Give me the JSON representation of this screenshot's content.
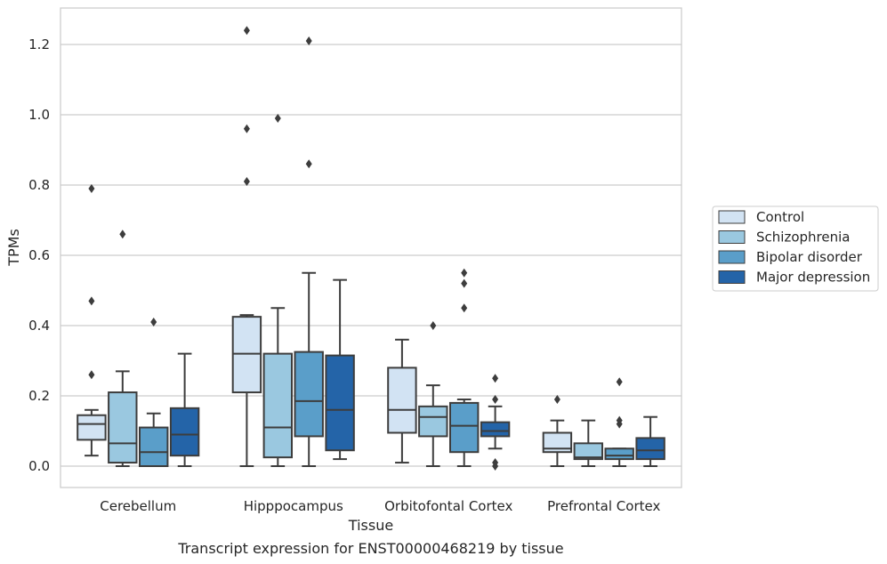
{
  "chart_data": {
    "type": "box",
    "title": "Transcript expression for ENST00000468219 by tissue",
    "xlabel": "Tissue",
    "ylabel": "TPMs",
    "ylim": [
      -0.06,
      1.3
    ],
    "yticks": [
      0.0,
      0.2,
      0.4,
      0.6,
      0.8,
      1.0,
      1.2
    ],
    "ytick_labels": [
      "0.0",
      "0.2",
      "0.4",
      "0.6",
      "0.8",
      "1.0",
      "1.2"
    ],
    "grid": "horizontal",
    "legend_position": "right",
    "categories": [
      "Cerebellum",
      "Hipppocampus",
      "Orbitofontal Cortex",
      "Prefrontal Cortex"
    ],
    "series": [
      {
        "name": "Control",
        "color": "#d2e3f3",
        "boxes": [
          {
            "whisker_low": 0.03,
            "q1": 0.075,
            "median": 0.12,
            "q3": 0.145,
            "whisker_high": 0.16,
            "outliers": [
              0.26,
              0.47,
              0.79
            ]
          },
          {
            "whisker_low": 0.0,
            "q1": 0.21,
            "median": 0.32,
            "q3": 0.425,
            "whisker_high": 0.43,
            "outliers": [
              0.81,
              0.96,
              1.24
            ]
          },
          {
            "whisker_low": 0.01,
            "q1": 0.095,
            "median": 0.16,
            "q3": 0.28,
            "whisker_high": 0.36,
            "outliers": []
          },
          {
            "whisker_low": 0.0,
            "q1": 0.04,
            "median": 0.05,
            "q3": 0.095,
            "whisker_high": 0.13,
            "outliers": [
              0.19
            ]
          }
        ]
      },
      {
        "name": "Schizophrenia",
        "color": "#9ac8e0",
        "boxes": [
          {
            "whisker_low": 0.0,
            "q1": 0.01,
            "median": 0.065,
            "q3": 0.21,
            "whisker_high": 0.27,
            "outliers": [
              0.66
            ]
          },
          {
            "whisker_low": 0.0,
            "q1": 0.025,
            "median": 0.11,
            "q3": 0.32,
            "whisker_high": 0.45,
            "outliers": [
              0.99
            ]
          },
          {
            "whisker_low": 0.0,
            "q1": 0.085,
            "median": 0.14,
            "q3": 0.17,
            "whisker_high": 0.23,
            "outliers": [
              0.4
            ]
          },
          {
            "whisker_low": 0.0,
            "q1": 0.02,
            "median": 0.025,
            "q3": 0.065,
            "whisker_high": 0.13,
            "outliers": []
          }
        ]
      },
      {
        "name": "Bipolar disorder",
        "color": "#5a9ec9",
        "boxes": [
          {
            "whisker_low": 0.0,
            "q1": 0.0,
            "median": 0.04,
            "q3": 0.11,
            "whisker_high": 0.15,
            "outliers": [
              0.41
            ]
          },
          {
            "whisker_low": 0.0,
            "q1": 0.085,
            "median": 0.185,
            "q3": 0.325,
            "whisker_high": 0.55,
            "outliers": [
              0.86,
              1.21
            ]
          },
          {
            "whisker_low": 0.0,
            "q1": 0.04,
            "median": 0.115,
            "q3": 0.18,
            "whisker_high": 0.19,
            "outliers": [
              0.45,
              0.52,
              0.55
            ]
          },
          {
            "whisker_low": 0.0,
            "q1": 0.02,
            "median": 0.03,
            "q3": 0.05,
            "whisker_high": 0.05,
            "outliers": [
              0.12,
              0.13,
              0.24
            ]
          }
        ]
      },
      {
        "name": "Major depression",
        "color": "#2464a8",
        "boxes": [
          {
            "whisker_low": 0.0,
            "q1": 0.03,
            "median": 0.09,
            "q3": 0.165,
            "whisker_high": 0.32,
            "outliers": []
          },
          {
            "whisker_low": 0.02,
            "q1": 0.045,
            "median": 0.16,
            "q3": 0.315,
            "whisker_high": 0.53,
            "outliers": []
          },
          {
            "whisker_low": 0.05,
            "q1": 0.085,
            "median": 0.1,
            "q3": 0.125,
            "whisker_high": 0.17,
            "outliers": [
              0.0,
              0.01,
              0.19,
              0.25
            ]
          },
          {
            "whisker_low": 0.0,
            "q1": 0.02,
            "median": 0.045,
            "q3": 0.08,
            "whisker_high": 0.14,
            "outliers": []
          }
        ]
      }
    ]
  }
}
